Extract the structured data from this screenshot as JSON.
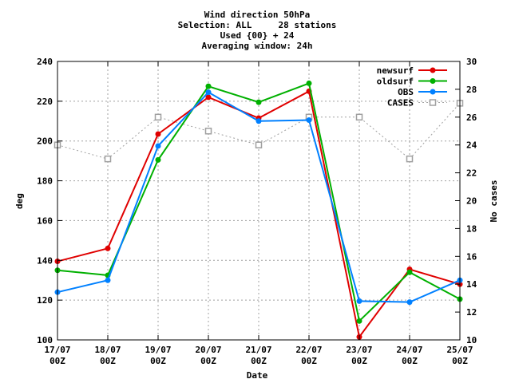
{
  "chart_data": {
    "type": "line",
    "title_lines": [
      "Wind direction 50hPa",
      "Selection: ALL     28 stations",
      "Used {00} + 24",
      "Averaging window: 24h"
    ],
    "xlabel": "Date",
    "ylabel": "deg",
    "y2label": "No cases",
    "categories": [
      [
        "17/07",
        "00Z"
      ],
      [
        "18/07",
        "00Z"
      ],
      [
        "19/07",
        "00Z"
      ],
      [
        "20/07",
        "00Z"
      ],
      [
        "21/07",
        "00Z"
      ],
      [
        "22/07",
        "00Z"
      ],
      [
        "23/07",
        "00Z"
      ],
      [
        "24/07",
        "00Z"
      ],
      [
        "25/07",
        "00Z"
      ]
    ],
    "ylim": [
      100,
      240
    ],
    "yticks": [
      100,
      120,
      140,
      160,
      180,
      200,
      220,
      240
    ],
    "y2lim": [
      10,
      30
    ],
    "y2ticks": [
      10,
      12,
      14,
      16,
      18,
      20,
      22,
      24,
      26,
      28,
      30
    ],
    "grid": true,
    "legend_position": "top-right",
    "series": [
      {
        "name": "newsurf",
        "axis": "left",
        "color": "#e00000",
        "marker": "circle",
        "dashed": false,
        "values": [
          139.5,
          146,
          203.5,
          222,
          211.5,
          225,
          101.5,
          135.5,
          128
        ]
      },
      {
        "name": "oldsurf",
        "axis": "left",
        "color": "#00b000",
        "marker": "circle",
        "dashed": false,
        "values": [
          135,
          132.5,
          190.5,
          227.5,
          219.5,
          229,
          109.5,
          134,
          120.5
        ]
      },
      {
        "name": "OBS",
        "axis": "left",
        "color": "#0080ff",
        "marker": "circle",
        "dashed": false,
        "values": [
          124,
          130,
          197.5,
          224.5,
          210,
          210.5,
          119.5,
          119,
          130
        ]
      },
      {
        "name": "CASES",
        "axis": "right",
        "color": "#a0a0a0",
        "marker": "square",
        "dashed": true,
        "values": [
          24,
          23,
          26,
          25,
          24,
          26,
          26,
          23,
          27
        ]
      }
    ]
  }
}
